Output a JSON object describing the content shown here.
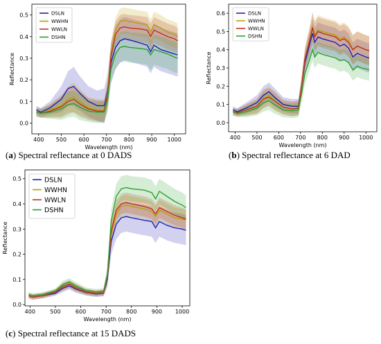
{
  "captions": [
    {
      "letter": "a",
      "text": "Spectral reflectance at 0 DADS"
    },
    {
      "letter": "b",
      "text": "Spectral reflectance at 6 DAD"
    },
    {
      "letter": "c",
      "text": "Spectral reflectance at 15 DADS"
    }
  ],
  "colors": {
    "DSLN": "#1f1fb4",
    "WWHN": "#b8a000",
    "WWLN": "#c0301f",
    "DSHN": "#2ca02c"
  },
  "chart_data": [
    {
      "type": "line",
      "panel": "a",
      "xlabel": "Wavelength (nm)",
      "ylabel": "Reflectance",
      "xlim": [
        370,
        1050
      ],
      "ylim": [
        -0.05,
        0.55
      ],
      "xticks": [
        400,
        500,
        600,
        700,
        800,
        900,
        1000
      ],
      "yticks": [
        0.0,
        0.1,
        0.2,
        0.3,
        0.4,
        0.5
      ],
      "ytick_labels": [
        "0.0",
        "0.1",
        "0.2",
        "0.3",
        "0.4",
        "0.5"
      ],
      "legend": "top-left",
      "x": [
        390,
        410,
        450,
        500,
        530,
        555,
        580,
        620,
        660,
        690,
        705,
        720,
        740,
        760,
        780,
        800,
        850,
        880,
        895,
        910,
        940,
        970,
        1000,
        1015
      ],
      "series": [
        {
          "name": "DSLN",
          "values": [
            0.06,
            0.05,
            0.07,
            0.11,
            0.16,
            0.17,
            0.14,
            0.1,
            0.08,
            0.08,
            0.15,
            0.28,
            0.35,
            0.38,
            0.39,
            0.385,
            0.37,
            0.36,
            0.33,
            0.36,
            0.34,
            0.33,
            0.32,
            0.315
          ],
          "spread": [
            0.02,
            0.02,
            0.03,
            0.06,
            0.08,
            0.09,
            0.08,
            0.07,
            0.07,
            0.08,
            0.08,
            0.09,
            0.1,
            0.1,
            0.1,
            0.1,
            0.1,
            0.1,
            0.1,
            0.1,
            0.1,
            0.1,
            0.1,
            0.1
          ]
        },
        {
          "name": "WWHN",
          "values": [
            0.05,
            0.045,
            0.06,
            0.08,
            0.11,
            0.12,
            0.1,
            0.07,
            0.06,
            0.06,
            0.14,
            0.32,
            0.43,
            0.47,
            0.475,
            0.47,
            0.46,
            0.455,
            0.42,
            0.455,
            0.44,
            0.42,
            0.41,
            0.4
          ],
          "spread": [
            0.02,
            0.02,
            0.03,
            0.05,
            0.06,
            0.07,
            0.06,
            0.05,
            0.05,
            0.05,
            0.06,
            0.06,
            0.06,
            0.06,
            0.06,
            0.06,
            0.06,
            0.06,
            0.06,
            0.06,
            0.06,
            0.06,
            0.06,
            0.06
          ]
        },
        {
          "name": "WWLN",
          "values": [
            0.05,
            0.045,
            0.055,
            0.075,
            0.1,
            0.11,
            0.09,
            0.065,
            0.055,
            0.055,
            0.13,
            0.31,
            0.41,
            0.44,
            0.445,
            0.44,
            0.435,
            0.43,
            0.4,
            0.43,
            0.415,
            0.4,
            0.39,
            0.38
          ],
          "spread": [
            0.02,
            0.02,
            0.03,
            0.05,
            0.06,
            0.06,
            0.06,
            0.05,
            0.05,
            0.05,
            0.06,
            0.06,
            0.06,
            0.06,
            0.06,
            0.06,
            0.06,
            0.06,
            0.06,
            0.06,
            0.06,
            0.06,
            0.06,
            0.06
          ]
        },
        {
          "name": "DSHN",
          "values": [
            0.05,
            0.045,
            0.05,
            0.065,
            0.085,
            0.09,
            0.075,
            0.055,
            0.05,
            0.05,
            0.11,
            0.25,
            0.32,
            0.35,
            0.355,
            0.35,
            0.345,
            0.34,
            0.315,
            0.34,
            0.33,
            0.32,
            0.305,
            0.3
          ],
          "spread": [
            0.02,
            0.02,
            0.03,
            0.05,
            0.06,
            0.06,
            0.06,
            0.05,
            0.05,
            0.05,
            0.06,
            0.07,
            0.07,
            0.07,
            0.07,
            0.07,
            0.07,
            0.07,
            0.07,
            0.07,
            0.07,
            0.07,
            0.07,
            0.07
          ]
        }
      ]
    },
    {
      "type": "line",
      "panel": "b",
      "xlabel": "Wavelength (nm)",
      "ylabel": "Reflectance",
      "xlim": [
        370,
        1050
      ],
      "ylim": [
        -0.05,
        0.65
      ],
      "xticks": [
        400,
        500,
        600,
        700,
        800,
        900,
        1000
      ],
      "yticks": [
        0.0,
        0.1,
        0.2,
        0.3,
        0.4,
        0.5,
        0.6
      ],
      "ytick_labels": [
        "0.0",
        "0.1",
        "0.2",
        "0.3",
        "0.4",
        "0.5",
        "0.6"
      ],
      "legend": "top-left",
      "x": [
        390,
        410,
        450,
        500,
        530,
        555,
        580,
        620,
        660,
        690,
        705,
        720,
        740,
        755,
        765,
        780,
        800,
        830,
        860,
        880,
        900,
        920,
        940,
        960,
        980,
        1000,
        1015
      ],
      "series": [
        {
          "name": "DSLN",
          "values": [
            0.07,
            0.06,
            0.08,
            0.11,
            0.15,
            0.17,
            0.14,
            0.1,
            0.09,
            0.09,
            0.2,
            0.33,
            0.42,
            0.49,
            0.44,
            0.47,
            0.46,
            0.45,
            0.44,
            0.42,
            0.43,
            0.41,
            0.36,
            0.38,
            0.37,
            0.36,
            0.355
          ],
          "spread": [
            0.02,
            0.02,
            0.03,
            0.04,
            0.05,
            0.05,
            0.05,
            0.04,
            0.04,
            0.04,
            0.05,
            0.06,
            0.07,
            0.08,
            0.08,
            0.08,
            0.08,
            0.08,
            0.08,
            0.08,
            0.08,
            0.08,
            0.08,
            0.08,
            0.08,
            0.08,
            0.08
          ]
        },
        {
          "name": "WWHN",
          "values": [
            0.06,
            0.055,
            0.07,
            0.09,
            0.13,
            0.15,
            0.12,
            0.085,
            0.075,
            0.08,
            0.2,
            0.35,
            0.45,
            0.53,
            0.48,
            0.51,
            0.5,
            0.49,
            0.48,
            0.46,
            0.47,
            0.45,
            0.4,
            0.42,
            0.41,
            0.4,
            0.395
          ],
          "spread": [
            0.02,
            0.02,
            0.03,
            0.04,
            0.05,
            0.05,
            0.05,
            0.04,
            0.04,
            0.04,
            0.05,
            0.06,
            0.07,
            0.08,
            0.08,
            0.08,
            0.08,
            0.08,
            0.08,
            0.08,
            0.08,
            0.08,
            0.08,
            0.08,
            0.08,
            0.08,
            0.08
          ]
        },
        {
          "name": "WWLN",
          "values": [
            0.06,
            0.055,
            0.07,
            0.09,
            0.13,
            0.14,
            0.12,
            0.085,
            0.075,
            0.08,
            0.2,
            0.35,
            0.44,
            0.52,
            0.47,
            0.5,
            0.49,
            0.48,
            0.47,
            0.45,
            0.46,
            0.44,
            0.4,
            0.42,
            0.41,
            0.4,
            0.395
          ],
          "spread": [
            0.02,
            0.02,
            0.03,
            0.04,
            0.05,
            0.05,
            0.05,
            0.04,
            0.04,
            0.04,
            0.05,
            0.06,
            0.07,
            0.08,
            0.08,
            0.08,
            0.08,
            0.08,
            0.08,
            0.08,
            0.08,
            0.08,
            0.08,
            0.08,
            0.08,
            0.08,
            0.08
          ]
        },
        {
          "name": "DSHN",
          "values": [
            0.06,
            0.05,
            0.06,
            0.08,
            0.11,
            0.12,
            0.1,
            0.07,
            0.065,
            0.07,
            0.16,
            0.27,
            0.34,
            0.4,
            0.36,
            0.385,
            0.375,
            0.365,
            0.355,
            0.34,
            0.345,
            0.33,
            0.29,
            0.31,
            0.3,
            0.295,
            0.29
          ],
          "spread": [
            0.02,
            0.02,
            0.03,
            0.04,
            0.05,
            0.05,
            0.05,
            0.04,
            0.04,
            0.04,
            0.05,
            0.06,
            0.06,
            0.06,
            0.06,
            0.06,
            0.06,
            0.06,
            0.06,
            0.06,
            0.06,
            0.06,
            0.06,
            0.06,
            0.06,
            0.06,
            0.06
          ]
        }
      ]
    },
    {
      "type": "line",
      "panel": "c",
      "xlabel": "Wavelength (nm)",
      "ylabel": "Reflectance",
      "xlim": [
        380,
        1030
      ],
      "ylim": [
        -0.005,
        0.535
      ],
      "xticks": [
        400,
        500,
        600,
        700,
        800,
        900,
        1000
      ],
      "yticks": [
        0.0,
        0.1,
        0.2,
        0.3,
        0.4,
        0.5
      ],
      "ytick_labels": [
        "0.0",
        "0.1",
        "0.2",
        "0.3",
        "0.4",
        "0.5"
      ],
      "legend": "top-left",
      "x": [
        395,
        410,
        450,
        500,
        530,
        555,
        580,
        620,
        660,
        690,
        705,
        720,
        740,
        760,
        780,
        800,
        850,
        880,
        895,
        910,
        940,
        970,
        1000,
        1015
      ],
      "series": [
        {
          "name": "DSLN",
          "values": [
            0.035,
            0.03,
            0.035,
            0.045,
            0.065,
            0.075,
            0.062,
            0.048,
            0.042,
            0.045,
            0.1,
            0.25,
            0.32,
            0.345,
            0.35,
            0.345,
            0.335,
            0.33,
            0.305,
            0.33,
            0.315,
            0.305,
            0.3,
            0.295
          ],
          "spread": [
            0.01,
            0.01,
            0.01,
            0.01,
            0.015,
            0.015,
            0.015,
            0.012,
            0.012,
            0.012,
            0.03,
            0.05,
            0.06,
            0.06,
            0.06,
            0.06,
            0.06,
            0.06,
            0.06,
            0.06,
            0.06,
            0.06,
            0.06,
            0.06
          ]
        },
        {
          "name": "WWHN",
          "values": [
            0.035,
            0.03,
            0.035,
            0.05,
            0.07,
            0.08,
            0.066,
            0.05,
            0.044,
            0.047,
            0.11,
            0.28,
            0.36,
            0.39,
            0.395,
            0.39,
            0.38,
            0.37,
            0.35,
            0.375,
            0.36,
            0.345,
            0.34,
            0.335
          ],
          "spread": [
            0.01,
            0.01,
            0.01,
            0.01,
            0.015,
            0.015,
            0.015,
            0.012,
            0.012,
            0.012,
            0.03,
            0.04,
            0.04,
            0.04,
            0.04,
            0.04,
            0.04,
            0.04,
            0.04,
            0.04,
            0.04,
            0.04,
            0.04,
            0.04
          ]
        },
        {
          "name": "WWLN",
          "values": [
            0.035,
            0.03,
            0.035,
            0.05,
            0.072,
            0.082,
            0.068,
            0.051,
            0.045,
            0.048,
            0.11,
            0.29,
            0.375,
            0.4,
            0.405,
            0.4,
            0.39,
            0.38,
            0.36,
            0.385,
            0.37,
            0.355,
            0.345,
            0.34
          ],
          "spread": [
            0.01,
            0.01,
            0.01,
            0.01,
            0.015,
            0.015,
            0.015,
            0.012,
            0.012,
            0.012,
            0.03,
            0.04,
            0.04,
            0.04,
            0.04,
            0.04,
            0.04,
            0.04,
            0.04,
            0.04,
            0.04,
            0.04,
            0.04,
            0.04
          ]
        },
        {
          "name": "DSHN",
          "values": [
            0.04,
            0.035,
            0.04,
            0.055,
            0.08,
            0.09,
            0.075,
            0.056,
            0.05,
            0.053,
            0.12,
            0.33,
            0.43,
            0.46,
            0.465,
            0.46,
            0.455,
            0.445,
            0.42,
            0.45,
            0.43,
            0.41,
            0.395,
            0.385
          ],
          "spread": [
            0.01,
            0.01,
            0.01,
            0.01,
            0.015,
            0.015,
            0.015,
            0.012,
            0.012,
            0.012,
            0.03,
            0.05,
            0.05,
            0.05,
            0.05,
            0.05,
            0.05,
            0.05,
            0.05,
            0.05,
            0.05,
            0.05,
            0.05,
            0.05
          ]
        }
      ]
    }
  ]
}
